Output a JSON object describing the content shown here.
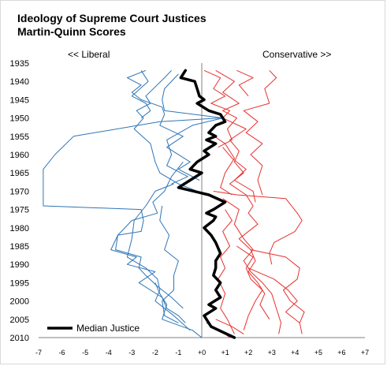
{
  "chart_data": {
    "type": "line",
    "title": "Ideology of Supreme Court Justices",
    "subtitle": "Martin-Quinn Scores",
    "left_label": "<< Liberal",
    "right_label": "Conservative >>",
    "xlim": [
      -7,
      7
    ],
    "ylim": [
      1935,
      2010
    ],
    "x_ticks": [
      {
        "v": -7,
        "label": "-7"
      },
      {
        "v": -6,
        "label": "-6"
      },
      {
        "v": -5,
        "label": "-5"
      },
      {
        "v": -4,
        "label": "-4"
      },
      {
        "v": -3,
        "label": "-3"
      },
      {
        "v": -2,
        "label": "-2"
      },
      {
        "v": -1,
        "label": "-1"
      },
      {
        "v": 0,
        "label": "+0"
      },
      {
        "v": 1,
        "label": "+1"
      },
      {
        "v": 2,
        "label": "+2"
      },
      {
        "v": 3,
        "label": "+3"
      },
      {
        "v": 4,
        "label": "+4"
      },
      {
        "v": 5,
        "label": "+5"
      },
      {
        "v": 6,
        "label": "+6"
      },
      {
        "v": 7,
        "label": "+7"
      }
    ],
    "y_ticks": [
      1935,
      1940,
      1945,
      1950,
      1955,
      1960,
      1965,
      1970,
      1975,
      1980,
      1985,
      1990,
      1995,
      2000,
      2005,
      2010
    ],
    "legend": "Median Justice",
    "colors": {
      "liberal": "#2e75b6",
      "conservative": "#e8312f",
      "median": "#000000"
    },
    "median": [
      [
        -0.7,
        1937
      ],
      [
        -0.9,
        1939
      ],
      [
        -0.3,
        1940
      ],
      [
        -0.2,
        1942
      ],
      [
        -0.1,
        1944
      ],
      [
        0.1,
        1945
      ],
      [
        -0.2,
        1946
      ],
      [
        0.3,
        1948
      ],
      [
        0.8,
        1949
      ],
      [
        1.0,
        1951
      ],
      [
        0.6,
        1952
      ],
      [
        0.3,
        1954
      ],
      [
        0.6,
        1955
      ],
      [
        0.2,
        1956
      ],
      [
        0.6,
        1957
      ],
      [
        0.1,
        1959
      ],
      [
        0.3,
        1960
      ],
      [
        -0.2,
        1962
      ],
      [
        -0.5,
        1964
      ],
      [
        0.0,
        1965
      ],
      [
        -0.5,
        1967
      ],
      [
        -1.0,
        1969
      ],
      [
        0.3,
        1971
      ],
      [
        1.0,
        1973
      ],
      [
        0.5,
        1975
      ],
      [
        0.2,
        1976
      ],
      [
        0.6,
        1977
      ],
      [
        0.5,
        1978
      ],
      [
        0.1,
        1980
      ],
      [
        0.4,
        1982
      ],
      [
        0.6,
        1984
      ],
      [
        0.8,
        1987
      ],
      [
        0.6,
        1989
      ],
      [
        0.6,
        1991
      ],
      [
        0.5,
        1993
      ],
      [
        0.8,
        1995
      ],
      [
        0.6,
        1997
      ],
      [
        0.8,
        1999
      ],
      [
        0.3,
        2001
      ],
      [
        0.6,
        2002
      ],
      [
        0.1,
        2004
      ],
      [
        0.3,
        2006
      ],
      [
        0.4,
        2007
      ],
      [
        1.4,
        2010
      ]
    ],
    "liberal_series": [
      [
        [
          -1.3,
          1937
        ],
        [
          -1.6,
          1939
        ],
        [
          -2.4,
          1944
        ],
        [
          -2.2,
          1946
        ],
        [
          -2.8,
          1948
        ],
        [
          -2.5,
          1950
        ],
        [
          -2.9,
          1953
        ],
        [
          -2.2,
          1957
        ],
        [
          -2.0,
          1962
        ],
        [
          -1.8,
          1965
        ],
        [
          -1.0,
          1968
        ],
        [
          -0.2,
          1970
        ]
      ],
      [
        [
          -2.4,
          1937
        ],
        [
          -3.2,
          1939
        ],
        [
          -2.6,
          1941
        ],
        [
          -3.0,
          1943
        ],
        [
          -2.6,
          1945
        ],
        [
          -1.7,
          1947
        ],
        [
          -1.6,
          1949
        ],
        [
          -1.8,
          1952
        ],
        [
          -0.8,
          1955
        ],
        [
          -1.5,
          1958
        ],
        [
          -0.5,
          1962
        ],
        [
          -1.0,
          1964
        ],
        [
          -0.1,
          1967
        ]
      ],
      [
        [
          -1.0,
          1938
        ],
        [
          -1.6,
          1942
        ],
        [
          -1.7,
          1945
        ],
        [
          -1.6,
          1948
        ],
        [
          0.9,
          1950
        ],
        [
          -0.4,
          1952
        ],
        [
          -1.5,
          1956
        ],
        [
          -1.3,
          1960
        ],
        [
          -1.5,
          1963
        ],
        [
          -0.6,
          1966
        ],
        [
          -1.3,
          1968
        ]
      ],
      [
        [
          -2.6,
          1937
        ],
        [
          -2.3,
          1940
        ],
        [
          -3.0,
          1944
        ],
        [
          -2.4,
          1946
        ],
        [
          -2.2,
          1948
        ],
        [
          -2.6,
          1950
        ]
      ],
      [
        [
          0.8,
          1950
        ],
        [
          -1.8,
          1951
        ],
        [
          -5.5,
          1955
        ],
        [
          -6.3,
          1960
        ],
        [
          -6.8,
          1964
        ],
        [
          -6.8,
          1969
        ],
        [
          -6.8,
          1974
        ],
        [
          -2.6,
          1975
        ],
        [
          -2.5,
          1978
        ],
        [
          -2.6,
          1981
        ],
        [
          -3.6,
          1982
        ],
        [
          -3.7,
          1986
        ],
        [
          -2.6,
          1988
        ],
        [
          -2.7,
          1991
        ],
        [
          -2.4,
          1993
        ],
        [
          -1.9,
          1996
        ],
        [
          -1.3,
          1999
        ],
        [
          -0.8,
          2002
        ]
      ],
      [
        [
          -0.8,
          1962
        ],
        [
          -1.3,
          1966
        ],
        [
          -1.6,
          1970
        ],
        [
          -2.1,
          1973
        ],
        [
          -1.9,
          1976
        ],
        [
          -3.0,
          1978
        ],
        [
          -3.6,
          1982
        ],
        [
          -3.9,
          1986
        ],
        [
          -2.8,
          1988
        ],
        [
          -3.2,
          1990
        ],
        [
          -2.0,
          1992
        ],
        [
          -2.7,
          1995
        ],
        [
          -1.7,
          1999
        ],
        [
          -1.5,
          2002
        ],
        [
          -1.0,
          2004
        ],
        [
          -0.7,
          2006
        ]
      ],
      [
        [
          -1.2,
          1968
        ],
        [
          -2.0,
          1970
        ],
        [
          -2.4,
          1974
        ],
        [
          -2.9,
          1978
        ],
        [
          -3.0,
          1983
        ],
        [
          -3.2,
          1988
        ],
        [
          -2.4,
          1991
        ],
        [
          -1.9,
          1994
        ],
        [
          -1.8,
          1997
        ],
        [
          -2.0,
          2000
        ],
        [
          -1.2,
          2004
        ],
        [
          -0.5,
          2008
        ]
      ],
      [
        [
          -1.7,
          1974
        ],
        [
          -1.8,
          1978
        ],
        [
          -1.4,
          1982
        ],
        [
          -1.6,
          1986
        ],
        [
          -1.0,
          1989
        ],
        [
          -1.2,
          1993
        ],
        [
          -1.2,
          1997
        ],
        [
          -1.7,
          2000
        ],
        [
          -1.6,
          2004
        ],
        [
          -1.0,
          2006
        ]
      ],
      [
        [
          -2.0,
          1995
        ],
        [
          -1.8,
          1998
        ],
        [
          -1.5,
          2001
        ],
        [
          -1.7,
          2005
        ],
        [
          -0.4,
          2008
        ],
        [
          0.0,
          2010
        ]
      ]
    ],
    "conservative_series": [
      [
        [
          0.1,
          1937
        ],
        [
          0.8,
          1939
        ],
        [
          0.5,
          1942
        ],
        [
          1.0,
          1944
        ],
        [
          0.4,
          1946
        ],
        [
          1.2,
          1948
        ],
        [
          0.9,
          1950
        ]
      ],
      [
        [
          0.6,
          1937
        ],
        [
          1.4,
          1940
        ],
        [
          0.9,
          1943
        ],
        [
          1.6,
          1946
        ],
        [
          0.9,
          1948
        ],
        [
          1.5,
          1950
        ],
        [
          1.1,
          1953
        ],
        [
          1.3,
          1956
        ],
        [
          0.7,
          1958
        ]
      ],
      [
        [
          1.5,
          1937
        ],
        [
          2.2,
          1939
        ],
        [
          1.6,
          1941
        ],
        [
          2.0,
          1944
        ]
      ],
      [
        [
          2.9,
          1937
        ],
        [
          3.2,
          1939
        ],
        [
          2.7,
          1942
        ],
        [
          2.9,
          1946
        ],
        [
          1.8,
          1948
        ],
        [
          2.4,
          1951
        ],
        [
          1.9,
          1954
        ],
        [
          2.6,
          1957
        ],
        [
          2.1,
          1960
        ],
        [
          2.6,
          1963
        ],
        [
          2.4,
          1967
        ],
        [
          2.6,
          1971
        ]
      ],
      [
        [
          0.9,
          1950
        ],
        [
          1.9,
          1953
        ],
        [
          1.2,
          1956
        ],
        [
          1.6,
          1959
        ],
        [
          1.4,
          1962
        ],
        [
          1.8,
          1965
        ],
        [
          1.2,
          1968
        ],
        [
          1.9,
          1971
        ],
        [
          2.2,
          1974
        ],
        [
          2.0,
          1976
        ],
        [
          2.4,
          1979
        ],
        [
          1.6,
          1983
        ],
        [
          2.1,
          1986
        ],
        [
          2.3,
          1989
        ],
        [
          2.0,
          1992
        ],
        [
          2.4,
          1995
        ],
        [
          2.7,
          1998
        ],
        [
          2.5,
          2001
        ],
        [
          2.9,
          2005
        ]
      ],
      [
        [
          0.3,
          1954
        ],
        [
          1.0,
          1957
        ],
        [
          1.4,
          1961
        ],
        [
          1.0,
          1965
        ],
        [
          0.8,
          1969
        ],
        [
          1.3,
          1971
        ]
      ],
      [
        [
          0.9,
          1958
        ],
        [
          1.3,
          1961
        ],
        [
          1.9,
          1964
        ],
        [
          1.4,
          1967
        ],
        [
          2.2,
          1970
        ],
        [
          2.3,
          1973
        ]
      ],
      [
        [
          0.5,
          1970
        ],
        [
          1.5,
          1971
        ],
        [
          3.6,
          1972
        ],
        [
          4.1,
          1976
        ],
        [
          4.3,
          1978
        ],
        [
          4.0,
          1981
        ],
        [
          3.1,
          1984
        ],
        [
          2.9,
          1987
        ],
        [
          3.0,
          1990
        ]
      ],
      [
        [
          0.9,
          1972
        ],
        [
          1.6,
          1975
        ],
        [
          1.4,
          1979
        ],
        [
          1.8,
          1983
        ],
        [
          2.2,
          1986
        ],
        [
          1.8,
          1989
        ],
        [
          2.1,
          1992
        ],
        [
          2.6,
          1995
        ],
        [
          3.0,
          1998
        ],
        [
          3.2,
          2002
        ],
        [
          3.4,
          2006
        ],
        [
          3.3,
          2009
        ]
      ],
      [
        [
          2.1,
          1986
        ],
        [
          3.6,
          1988
        ],
        [
          4.2,
          1991
        ],
        [
          4.1,
          1994
        ],
        [
          3.5,
          1997
        ],
        [
          3.8,
          2000
        ],
        [
          4.4,
          2003
        ],
        [
          4.2,
          2006
        ],
        [
          4.3,
          2009
        ]
      ],
      [
        [
          2.0,
          1991
        ],
        [
          3.1,
          1994
        ],
        [
          3.7,
          1997
        ],
        [
          4.1,
          2000
        ],
        [
          3.6,
          2003
        ],
        [
          4.2,
          2006
        ]
      ],
      [
        [
          1.5,
          1985
        ],
        [
          2.2,
          1988
        ],
        [
          1.9,
          1991
        ],
        [
          2.1,
          1994
        ],
        [
          2.6,
          1997
        ],
        [
          2.3,
          2000
        ],
        [
          2.0,
          2004
        ],
        [
          1.8,
          2008
        ]
      ],
      [
        [
          1.0,
          1975
        ],
        [
          1.3,
          1978
        ],
        [
          0.9,
          1981
        ],
        [
          1.2,
          1985
        ],
        [
          0.8,
          1988
        ],
        [
          1.0,
          1991
        ],
        [
          0.7,
          1994
        ],
        [
          1.0,
          1998
        ],
        [
          0.8,
          2002
        ],
        [
          1.1,
          2005
        ],
        [
          1.4,
          2009
        ]
      ],
      [
        [
          0.6,
          2005
        ],
        [
          1.3,
          2007
        ],
        [
          1.8,
          2009
        ]
      ],
      [
        [
          0.2,
          2006
        ],
        [
          0.8,
          2008
        ],
        [
          1.2,
          2010
        ]
      ]
    ]
  }
}
